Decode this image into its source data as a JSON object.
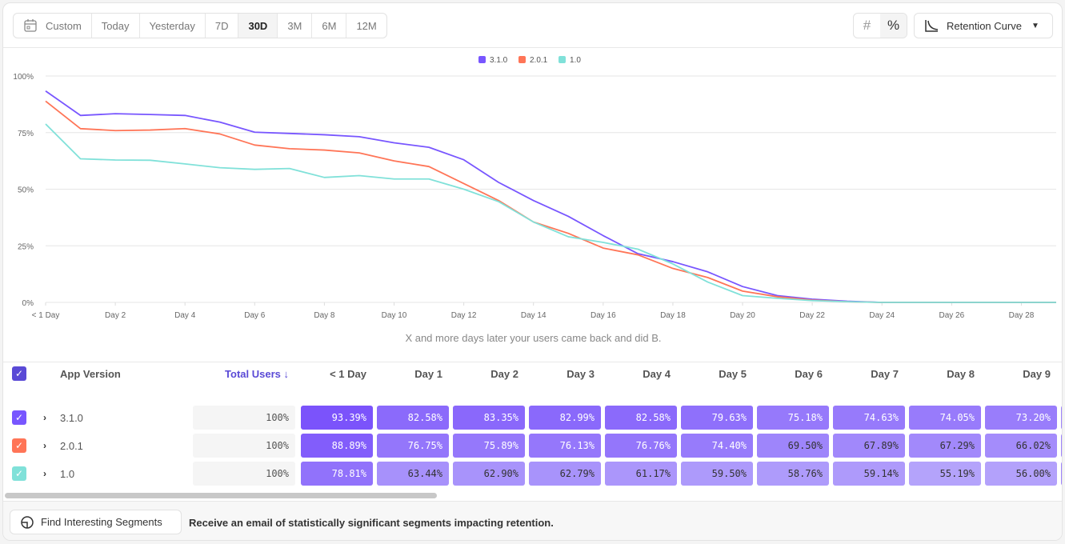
{
  "toolbar": {
    "ranges": [
      "Custom",
      "Today",
      "Yesterday",
      "7D",
      "30D",
      "3M",
      "6M",
      "12M"
    ],
    "active_range": "30D",
    "calendar_icon": "calendar-icon",
    "toggle": {
      "count_icon": "hash-icon",
      "percent_icon": "percent-icon",
      "active": "percent"
    },
    "view_label": "Retention Curve"
  },
  "chart_data": {
    "type": "line",
    "x_ticks": [
      "< 1 Day",
      "Day 2",
      "Day 4",
      "Day 6",
      "Day 8",
      "Day 10",
      "Day 12",
      "Day 14",
      "Day 16",
      "Day 18",
      "Day 20",
      "Day 22",
      "Day 24",
      "Day 26",
      "Day 28"
    ],
    "y_ticks": [
      "0%",
      "25%",
      "50%",
      "75%",
      "100%"
    ],
    "ylim": [
      0,
      100
    ],
    "x_range": [
      0,
      29
    ],
    "grid": true,
    "legend_placement": "top-center",
    "series": [
      {
        "name": "3.1.0",
        "color": "#7856ff",
        "values": [
          93.39,
          82.58,
          83.35,
          82.99,
          82.58,
          79.63,
          75.18,
          74.63,
          74.05,
          73.2,
          70.5,
          68.5,
          63,
          53,
          45,
          38,
          29.5,
          21.5,
          18,
          13.5,
          7,
          3,
          1.4,
          0.5,
          0,
          0,
          0,
          0,
          0,
          0
        ]
      },
      {
        "name": "2.0.1",
        "color": "#ff7557",
        "values": [
          88.89,
          76.75,
          75.89,
          76.13,
          76.76,
          74.4,
          69.5,
          67.89,
          67.29,
          66.02,
          62.5,
          60,
          52.5,
          45,
          35.5,
          30.5,
          24,
          21,
          15,
          11,
          5,
          2.5,
          1,
          0.3,
          0,
          0,
          0,
          0,
          0,
          0
        ]
      },
      {
        "name": "1.0",
        "color": "#80e1d9",
        "values": [
          78.81,
          63.44,
          62.9,
          62.79,
          61.17,
          59.5,
          58.76,
          59.14,
          55.19,
          56.0,
          54.5,
          54.5,
          50,
          44.5,
          35.5,
          29,
          26.5,
          23.5,
          17,
          9,
          3,
          1.8,
          0.8,
          0.3,
          0,
          0,
          0,
          0,
          0,
          0
        ]
      }
    ]
  },
  "caption": "X and more days later your users came back and did B.",
  "table": {
    "headers": {
      "segment": "App Version",
      "total": "Total Users ↓",
      "days": [
        "< 1 Day",
        "Day 1",
        "Day 2",
        "Day 3",
        "Day 4",
        "Day 5",
        "Day 6",
        "Day 7",
        "Day 8",
        "Day 9"
      ]
    },
    "rows": [
      {
        "label": "3.1.0",
        "color": "#7856ff",
        "total": "100%",
        "cells": [
          "93.39%",
          "82.58%",
          "83.35%",
          "82.99%",
          "82.58%",
          "79.63%",
          "75.18%",
          "74.63%",
          "74.05%",
          "73.20%"
        ]
      },
      {
        "label": "2.0.1",
        "color": "#ff7557",
        "total": "100%",
        "cells": [
          "88.89%",
          "76.75%",
          "75.89%",
          "76.13%",
          "76.76%",
          "74.40%",
          "69.50%",
          "67.89%",
          "67.29%",
          "66.02%"
        ]
      },
      {
        "label": "1.0",
        "color": "#80e1d9",
        "total": "100%",
        "cells": [
          "78.81%",
          "63.44%",
          "62.90%",
          "62.79%",
          "61.17%",
          "59.50%",
          "58.76%",
          "59.14%",
          "55.19%",
          "56.00%"
        ]
      }
    ]
  },
  "footer": {
    "button_label": "Find Interesting Segments",
    "text": "Receive an email of statistically significant segments impacting retention."
  }
}
